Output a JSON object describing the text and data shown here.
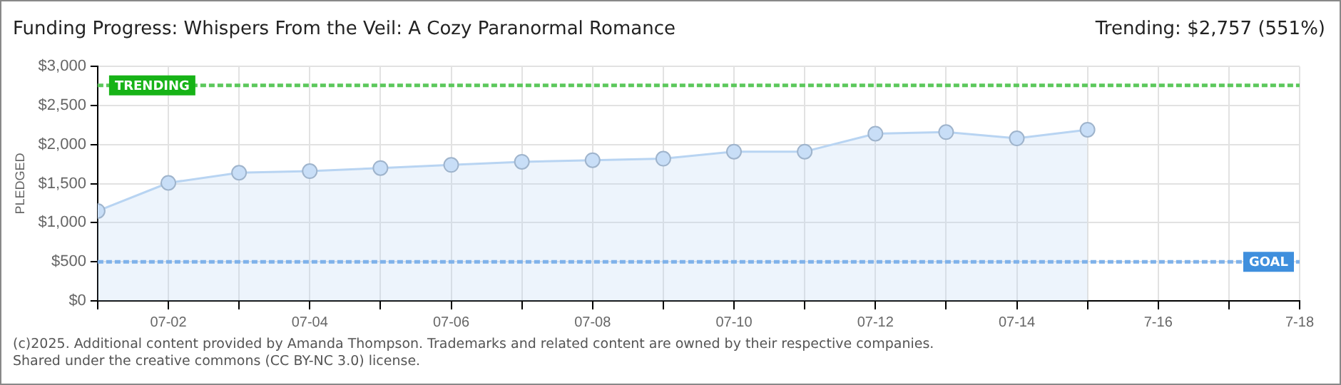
{
  "chart_data": {
    "type": "area",
    "title": "Funding Progress: Whispers From the Veil: A Cozy Paranormal Romance",
    "ylabel": "PLEDGED",
    "annotations": [
      "Trending: $2,757 (551%)",
      "(c)2025. Additional content provided by Amanda Thompson. Trademarks and related content are owned by their respective companies.",
      "Shared under the creative commons (CC BY-NC 3.0) license."
    ],
    "x": [
      "2025-07-01",
      "2025-07-02",
      "2025-07-03",
      "2025-07-04",
      "2025-07-05",
      "2025-07-06",
      "2025-07-07",
      "2025-07-08",
      "2025-07-09",
      "2025-07-10",
      "2025-07-11",
      "2025-07-12",
      "2025-07-13",
      "2025-07-14",
      "2025-07-15"
    ],
    "series": [
      {
        "color": "#b8d4f2",
        "values": [
          1150,
          1510,
          1640,
          1660,
          1700,
          1740,
          1780,
          1800,
          1820,
          1910,
          1910,
          2140,
          2160,
          2080,
          2190
        ]
      }
    ],
    "xlim": [
      "2025-07-01",
      "2025-07-18"
    ],
    "xticks": [
      {
        "value": "2025-07-01",
        "label": null
      },
      {
        "value": "2025-07-02",
        "label": "07-02"
      },
      {
        "value": "2025-07-03",
        "label": null
      },
      {
        "value": "2025-07-04",
        "label": "07-04"
      },
      {
        "value": "2025-07-05",
        "label": null
      },
      {
        "value": "2025-07-06",
        "label": "07-06"
      },
      {
        "value": "2025-07-07",
        "label": null
      },
      {
        "value": "2025-07-08",
        "label": "07-08"
      },
      {
        "value": "2025-07-09",
        "label": null
      },
      {
        "value": "2025-07-10",
        "label": "07-10"
      },
      {
        "value": "2025-07-11",
        "label": null
      },
      {
        "value": "2025-07-12",
        "label": "07-12"
      },
      {
        "value": "2025-07-13",
        "label": null
      },
      {
        "value": "2025-07-14",
        "label": "07-14"
      },
      {
        "value": "2025-07-15",
        "label": null
      },
      {
        "value": "2025-07-16",
        "label": "7-16"
      },
      {
        "value": "2025-07-17",
        "label": null
      },
      {
        "value": "2025-07-18",
        "label": "7-18"
      }
    ],
    "ylim": [
      0,
      3000
    ],
    "yticks": [
      {
        "value": 0,
        "label": "$0"
      },
      {
        "value": 500,
        "label": "$500"
      },
      {
        "value": 1000,
        "label": "$1,000"
      },
      {
        "value": 1500,
        "label": "$1,500"
      },
      {
        "value": 2000,
        "label": "$2,000"
      },
      {
        "value": 2500,
        "label": "$2,500"
      },
      {
        "value": 3000,
        "label": "$3,000"
      }
    ],
    "ref_lines": [
      {
        "axis": "y",
        "value": 2757,
        "label": "TRENDING",
        "color": "#5cc85c",
        "line_style": "dashed"
      },
      {
        "axis": "y",
        "value": 500,
        "label": "GOAL",
        "color": "#7fb2ea",
        "line_style": "dashed"
      }
    ],
    "grid": true,
    "legend": false,
    "marker": "circle",
    "line_style": "solid"
  }
}
